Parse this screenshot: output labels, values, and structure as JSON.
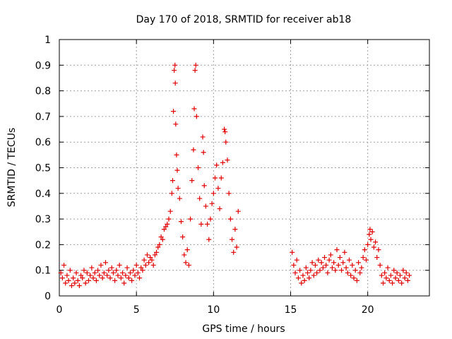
{
  "colors": {
    "series": "#e00000",
    "axis": "#000000",
    "grid": "#a0a0a0",
    "background": "#ffffff"
  },
  "chart_data": {
    "type": "scatter",
    "title": "Day 170 of 2018, SRMTID for receiver ab18",
    "xlabel": "GPS time / hours",
    "ylabel": "SRMTID / TECUs",
    "xlim": [
      0,
      24
    ],
    "ylim": [
      0,
      1
    ],
    "grid": true,
    "marker": "+",
    "xticks": [
      0,
      5,
      10,
      15,
      20
    ],
    "xtick_labels": [
      "0",
      "5",
      "10",
      "15",
      "20"
    ],
    "yticks": [
      0,
      0.1,
      0.2,
      0.3,
      0.4,
      0.5,
      0.6,
      0.7,
      0.8,
      0.9,
      1
    ],
    "ytick_labels": [
      "0",
      "0.1",
      "0.2",
      "0.3",
      "0.4",
      "0.5",
      "0.6",
      "0.7",
      "0.8",
      "0.9",
      "1"
    ],
    "series": [
      {
        "name": "SRMTID",
        "points": [
          [
            0.1,
            0.09
          ],
          [
            0.2,
            0.07
          ],
          [
            0.3,
            0.12
          ],
          [
            0.4,
            0.05
          ],
          [
            0.5,
            0.08
          ],
          [
            0.6,
            0.06
          ],
          [
            0.7,
            0.1
          ],
          [
            0.8,
            0.04
          ],
          [
            0.9,
            0.07
          ],
          [
            1.0,
            0.05
          ],
          [
            1.1,
            0.09
          ],
          [
            1.2,
            0.06
          ],
          [
            1.3,
            0.04
          ],
          [
            1.4,
            0.08
          ],
          [
            1.5,
            0.07
          ],
          [
            1.6,
            0.1
          ],
          [
            1.7,
            0.05
          ],
          [
            1.8,
            0.09
          ],
          [
            1.9,
            0.06
          ],
          [
            2.0,
            0.08
          ],
          [
            2.1,
            0.11
          ],
          [
            2.2,
            0.07
          ],
          [
            2.3,
            0.09
          ],
          [
            2.4,
            0.06
          ],
          [
            2.5,
            0.1
          ],
          [
            2.6,
            0.08
          ],
          [
            2.7,
            0.12
          ],
          [
            2.8,
            0.07
          ],
          [
            2.9,
            0.09
          ],
          [
            3.0,
            0.13
          ],
          [
            3.1,
            0.08
          ],
          [
            3.2,
            0.1
          ],
          [
            3.3,
            0.07
          ],
          [
            3.4,
            0.11
          ],
          [
            3.5,
            0.09
          ],
          [
            3.6,
            0.06
          ],
          [
            3.7,
            0.1
          ],
          [
            3.8,
            0.08
          ],
          [
            3.9,
            0.12
          ],
          [
            4.0,
            0.07
          ],
          [
            4.1,
            0.09
          ],
          [
            4.2,
            0.05
          ],
          [
            4.3,
            0.08
          ],
          [
            4.4,
            0.11
          ],
          [
            4.5,
            0.07
          ],
          [
            4.6,
            0.09
          ],
          [
            4.7,
            0.06
          ],
          [
            4.8,
            0.1
          ],
          [
            4.9,
            0.08
          ],
          [
            5.0,
            0.12
          ],
          [
            5.1,
            0.09
          ],
          [
            5.2,
            0.07
          ],
          [
            5.3,
            0.11
          ],
          [
            5.4,
            0.1
          ],
          [
            5.5,
            0.14
          ],
          [
            5.6,
            0.12
          ],
          [
            5.7,
            0.16
          ],
          [
            5.8,
            0.13
          ],
          [
            5.9,
            0.15
          ],
          [
            6.0,
            0.14
          ],
          [
            6.1,
            0.12
          ],
          [
            6.2,
            0.16
          ],
          [
            6.3,
            0.17
          ],
          [
            6.4,
            0.19
          ],
          [
            6.5,
            0.2
          ],
          [
            6.6,
            0.23
          ],
          [
            6.7,
            0.22
          ],
          [
            6.8,
            0.26
          ],
          [
            6.9,
            0.27
          ],
          [
            7.0,
            0.28
          ],
          [
            7.1,
            0.3
          ],
          [
            7.2,
            0.33
          ],
          [
            7.3,
            0.4
          ],
          [
            7.35,
            0.45
          ],
          [
            7.4,
            0.72
          ],
          [
            7.45,
            0.88
          ],
          [
            7.5,
            0.9
          ],
          [
            7.52,
            0.83
          ],
          [
            7.55,
            0.67
          ],
          [
            7.6,
            0.55
          ],
          [
            7.65,
            0.49
          ],
          [
            7.7,
            0.42
          ],
          [
            7.8,
            0.38
          ],
          [
            7.9,
            0.29
          ],
          [
            8.0,
            0.23
          ],
          [
            8.1,
            0.16
          ],
          [
            8.2,
            0.13
          ],
          [
            8.3,
            0.18
          ],
          [
            8.4,
            0.12
          ],
          [
            8.5,
            0.3
          ],
          [
            8.6,
            0.45
          ],
          [
            8.7,
            0.57
          ],
          [
            8.75,
            0.73
          ],
          [
            8.8,
            0.88
          ],
          [
            8.85,
            0.9
          ],
          [
            8.9,
            0.7
          ],
          [
            9.0,
            0.5
          ],
          [
            9.1,
            0.38
          ],
          [
            9.2,
            0.28
          ],
          [
            9.3,
            0.62
          ],
          [
            9.35,
            0.56
          ],
          [
            9.4,
            0.43
          ],
          [
            9.5,
            0.35
          ],
          [
            9.6,
            0.28
          ],
          [
            9.7,
            0.22
          ],
          [
            9.8,
            0.3
          ],
          [
            9.9,
            0.36
          ],
          [
            10.0,
            0.4
          ],
          [
            10.1,
            0.46
          ],
          [
            10.2,
            0.51
          ],
          [
            10.3,
            0.42
          ],
          [
            10.4,
            0.34
          ],
          [
            10.5,
            0.46
          ],
          [
            10.6,
            0.52
          ],
          [
            10.7,
            0.65
          ],
          [
            10.75,
            0.64
          ],
          [
            10.8,
            0.6
          ],
          [
            10.9,
            0.53
          ],
          [
            11.0,
            0.4
          ],
          [
            11.1,
            0.3
          ],
          [
            11.2,
            0.22
          ],
          [
            11.3,
            0.17
          ],
          [
            11.4,
            0.26
          ],
          [
            11.5,
            0.19
          ],
          [
            11.6,
            0.33
          ],
          [
            15.1,
            0.17
          ],
          [
            15.2,
            0.12
          ],
          [
            15.3,
            0.09
          ],
          [
            15.4,
            0.14
          ],
          [
            15.5,
            0.07
          ],
          [
            15.6,
            0.1
          ],
          [
            15.7,
            0.05
          ],
          [
            15.8,
            0.08
          ],
          [
            15.9,
            0.06
          ],
          [
            16.0,
            0.11
          ],
          [
            16.1,
            0.09
          ],
          [
            16.2,
            0.07
          ],
          [
            16.3,
            0.1
          ],
          [
            16.4,
            0.13
          ],
          [
            16.5,
            0.08
          ],
          [
            16.6,
            0.12
          ],
          [
            16.7,
            0.09
          ],
          [
            16.8,
            0.14
          ],
          [
            16.9,
            0.1
          ],
          [
            17.0,
            0.13
          ],
          [
            17.1,
            0.11
          ],
          [
            17.2,
            0.15
          ],
          [
            17.3,
            0.12
          ],
          [
            17.4,
            0.09
          ],
          [
            17.5,
            0.14
          ],
          [
            17.6,
            0.16
          ],
          [
            17.7,
            0.11
          ],
          [
            17.8,
            0.13
          ],
          [
            17.9,
            0.1
          ],
          [
            18.0,
            0.18
          ],
          [
            18.1,
            0.12
          ],
          [
            18.2,
            0.15
          ],
          [
            18.3,
            0.1
          ],
          [
            18.4,
            0.13
          ],
          [
            18.5,
            0.17
          ],
          [
            18.6,
            0.11
          ],
          [
            18.7,
            0.09
          ],
          [
            18.8,
            0.14
          ],
          [
            18.9,
            0.08
          ],
          [
            19.0,
            0.12
          ],
          [
            19.1,
            0.07
          ],
          [
            19.2,
            0.1
          ],
          [
            19.3,
            0.06
          ],
          [
            19.4,
            0.13
          ],
          [
            19.5,
            0.09
          ],
          [
            19.6,
            0.11
          ],
          [
            19.7,
            0.15
          ],
          [
            19.8,
            0.18
          ],
          [
            19.9,
            0.14
          ],
          [
            20.0,
            0.2
          ],
          [
            20.1,
            0.24
          ],
          [
            20.15,
            0.26
          ],
          [
            20.2,
            0.22
          ],
          [
            20.3,
            0.25
          ],
          [
            20.4,
            0.19
          ],
          [
            20.5,
            0.21
          ],
          [
            20.6,
            0.15
          ],
          [
            20.7,
            0.18
          ],
          [
            20.8,
            0.12
          ],
          [
            20.9,
            0.08
          ],
          [
            21.0,
            0.05
          ],
          [
            21.1,
            0.09
          ],
          [
            21.2,
            0.07
          ],
          [
            21.3,
            0.11
          ],
          [
            21.4,
            0.06
          ],
          [
            21.5,
            0.08
          ],
          [
            21.6,
            0.05
          ],
          [
            21.7,
            0.1
          ],
          [
            21.8,
            0.07
          ],
          [
            21.9,
            0.09
          ],
          [
            22.0,
            0.06
          ],
          [
            22.1,
            0.08
          ],
          [
            22.2,
            0.05
          ],
          [
            22.3,
            0.1
          ],
          [
            22.4,
            0.07
          ],
          [
            22.5,
            0.09
          ],
          [
            22.6,
            0.06
          ],
          [
            22.7,
            0.08
          ]
        ]
      }
    ]
  }
}
